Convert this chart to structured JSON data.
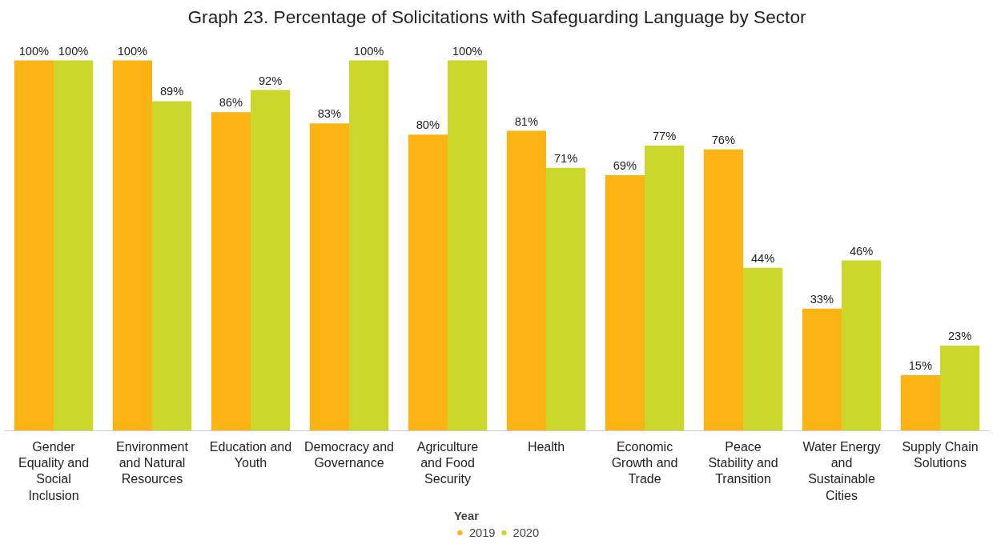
{
  "chart_data": {
    "type": "bar",
    "title": "Graph 23. Percentage of Solicitations with Safeguarding Language by Sector",
    "categories": [
      "Gender Equality and Social Inclusion",
      "Environment and Natural Resources",
      "Education and Youth",
      "Democracy and Governance",
      "Agriculture and Food Security",
      "Health",
      "Economic Growth and Trade",
      "Peace Stability and Transition",
      "Water Energy and Sustainable Cities",
      "Supply Chain Solutions"
    ],
    "legend_title": "Year",
    "legend": "bottom",
    "grid": false,
    "series": [
      {
        "name": "2019",
        "color": "#fbb414",
        "values": [
          100,
          100,
          86,
          83,
          80,
          81,
          69,
          76,
          33,
          15
        ],
        "value_labels": [
          "100%",
          "100%",
          "86%",
          "83%",
          "80%",
          "81%",
          "69%",
          "76%",
          "33%",
          "15%"
        ]
      },
      {
        "name": "2020",
        "color": "#c9d82b",
        "values": [
          100,
          89,
          92,
          100,
          100,
          71,
          77,
          44,
          46,
          23
        ],
        "value_labels": [
          "100%",
          "89%",
          "92%",
          "100%",
          "100%",
          "71%",
          "77%",
          "44%",
          "46%",
          "23%"
        ]
      }
    ]
  }
}
